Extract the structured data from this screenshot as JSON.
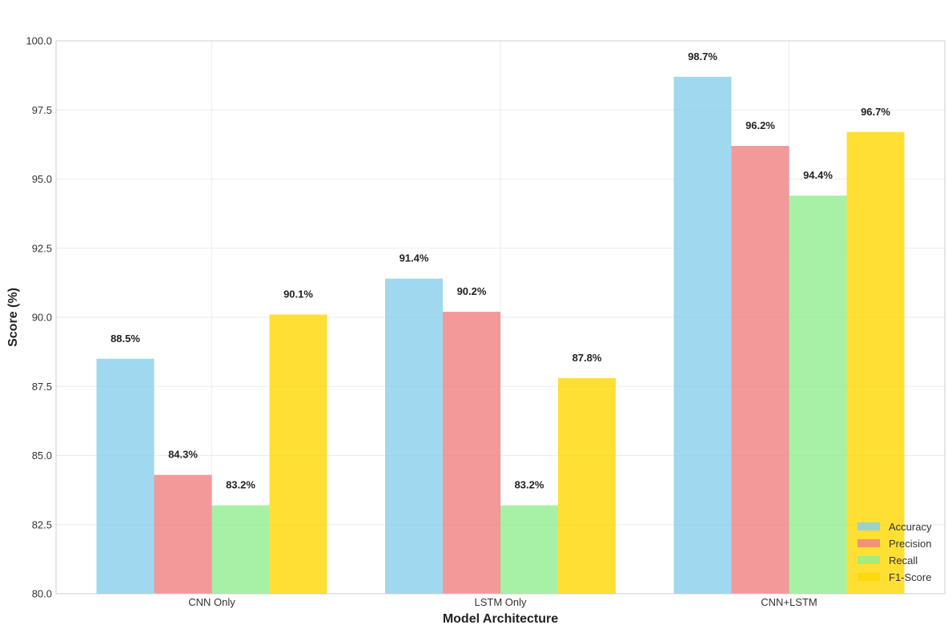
{
  "chart_data": {
    "type": "bar",
    "categories": [
      "CNN Only",
      "LSTM Only",
      "CNN+LSTM"
    ],
    "series": [
      {
        "name": "Accuracy",
        "values": [
          88.5,
          91.4,
          98.7
        ],
        "color": "#87ceeb"
      },
      {
        "name": "Precision",
        "values": [
          84.3,
          90.2,
          96.2
        ],
        "color": "#f08080"
      },
      {
        "name": "Recall",
        "values": [
          83.2,
          83.2,
          94.4
        ],
        "color": "#90ee90"
      },
      {
        "name": "F1-Score",
        "values": [
          90.1,
          87.8,
          96.7
        ],
        "color": "#ffd700"
      }
    ],
    "data_labels": [
      [
        "88.5%",
        "91.4%",
        "98.7%"
      ],
      [
        "84.3%",
        "90.2%",
        "96.2%"
      ],
      [
        "83.2%",
        "83.2%",
        "94.4%"
      ],
      [
        "90.1%",
        "87.8%",
        "96.7%"
      ]
    ],
    "title": "",
    "xlabel": "Model Architecture",
    "ylabel": "Score (%)",
    "ylim": [
      80,
      100
    ],
    "yticks": [
      "80.0",
      "82.5",
      "85.0",
      "87.5",
      "90.0",
      "92.5",
      "95.0",
      "97.5",
      "100.0"
    ],
    "grid": true,
    "legend_position": "lower-right",
    "bar_opacity": 0.8
  }
}
